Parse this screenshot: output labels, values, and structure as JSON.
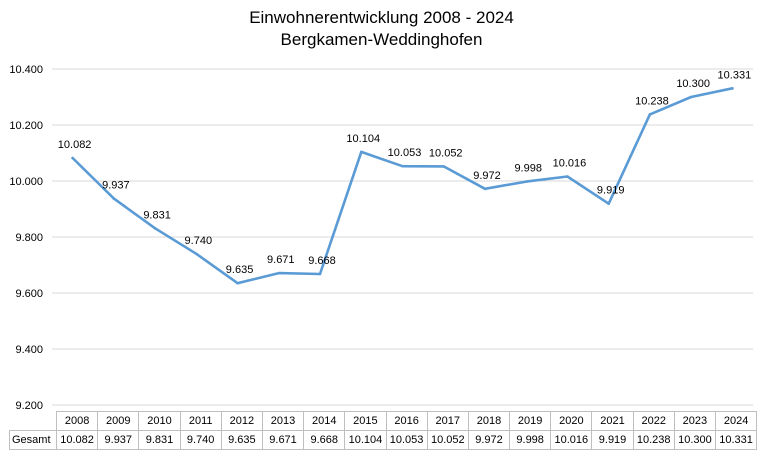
{
  "chart_data": {
    "type": "line",
    "title": "Einwohnerentwicklung 2008 - 2024",
    "subtitle": "Bergkamen-Weddinghofen",
    "categories": [
      "2008",
      "2009",
      "2010",
      "2011",
      "2012",
      "2013",
      "2014",
      "2015",
      "2016",
      "2017",
      "2018",
      "2019",
      "2020",
      "2021",
      "2022",
      "2023",
      "2024"
    ],
    "series": [
      {
        "name": "Gesamt",
        "values": [
          10082,
          9937,
          9831,
          9740,
          9635,
          9671,
          9668,
          10104,
          10053,
          10052,
          9972,
          9998,
          10016,
          9919,
          10238,
          10300,
          10331
        ],
        "labels": [
          "10.082",
          "9.937",
          "9.831",
          "9.740",
          "9.635",
          "9.671",
          "9.668",
          "10.104",
          "10.053",
          "10.052",
          "9.972",
          "9.998",
          "10.016",
          "9.919",
          "10.238",
          "10.300",
          "10.331"
        ],
        "color": "#5b9bd5"
      }
    ],
    "ylim": [
      9200,
      10400
    ],
    "yticks": [
      9200,
      9400,
      9600,
      9800,
      10000,
      10200,
      10400
    ],
    "ytick_labels": [
      "9.200",
      "9.400",
      "9.600",
      "9.800",
      "10.000",
      "10.200",
      "10.400"
    ],
    "grid": true,
    "gridline_color": "#d9d9d9",
    "data_table": true
  }
}
